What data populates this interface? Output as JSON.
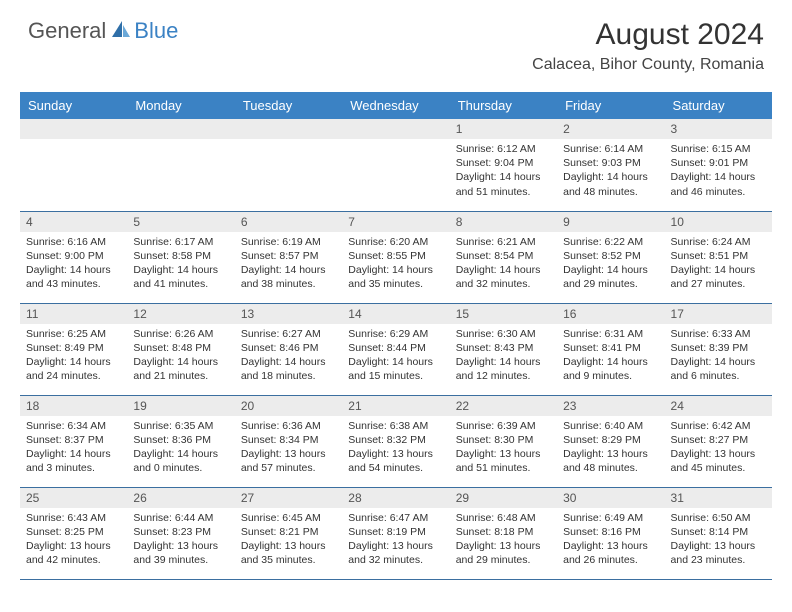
{
  "logo": {
    "text1": "General",
    "text2": "Blue"
  },
  "title": "August 2024",
  "location": "Calacea, Bihor County, Romania",
  "colors": {
    "header_bg": "#3b82c4",
    "header_text": "#ffffff",
    "daynum_bg": "#ececec",
    "row_border": "#3b6fa0",
    "body_text": "#333333"
  },
  "day_headers": [
    "Sunday",
    "Monday",
    "Tuesday",
    "Wednesday",
    "Thursday",
    "Friday",
    "Saturday"
  ],
  "weeks": [
    [
      null,
      null,
      null,
      null,
      {
        "n": "1",
        "sunrise": "Sunrise: 6:12 AM",
        "sunset": "Sunset: 9:04 PM",
        "day1": "Daylight: 14 hours",
        "day2": "and 51 minutes."
      },
      {
        "n": "2",
        "sunrise": "Sunrise: 6:14 AM",
        "sunset": "Sunset: 9:03 PM",
        "day1": "Daylight: 14 hours",
        "day2": "and 48 minutes."
      },
      {
        "n": "3",
        "sunrise": "Sunrise: 6:15 AM",
        "sunset": "Sunset: 9:01 PM",
        "day1": "Daylight: 14 hours",
        "day2": "and 46 minutes."
      }
    ],
    [
      {
        "n": "4",
        "sunrise": "Sunrise: 6:16 AM",
        "sunset": "Sunset: 9:00 PM",
        "day1": "Daylight: 14 hours",
        "day2": "and 43 minutes."
      },
      {
        "n": "5",
        "sunrise": "Sunrise: 6:17 AM",
        "sunset": "Sunset: 8:58 PM",
        "day1": "Daylight: 14 hours",
        "day2": "and 41 minutes."
      },
      {
        "n": "6",
        "sunrise": "Sunrise: 6:19 AM",
        "sunset": "Sunset: 8:57 PM",
        "day1": "Daylight: 14 hours",
        "day2": "and 38 minutes."
      },
      {
        "n": "7",
        "sunrise": "Sunrise: 6:20 AM",
        "sunset": "Sunset: 8:55 PM",
        "day1": "Daylight: 14 hours",
        "day2": "and 35 minutes."
      },
      {
        "n": "8",
        "sunrise": "Sunrise: 6:21 AM",
        "sunset": "Sunset: 8:54 PM",
        "day1": "Daylight: 14 hours",
        "day2": "and 32 minutes."
      },
      {
        "n": "9",
        "sunrise": "Sunrise: 6:22 AM",
        "sunset": "Sunset: 8:52 PM",
        "day1": "Daylight: 14 hours",
        "day2": "and 29 minutes."
      },
      {
        "n": "10",
        "sunrise": "Sunrise: 6:24 AM",
        "sunset": "Sunset: 8:51 PM",
        "day1": "Daylight: 14 hours",
        "day2": "and 27 minutes."
      }
    ],
    [
      {
        "n": "11",
        "sunrise": "Sunrise: 6:25 AM",
        "sunset": "Sunset: 8:49 PM",
        "day1": "Daylight: 14 hours",
        "day2": "and 24 minutes."
      },
      {
        "n": "12",
        "sunrise": "Sunrise: 6:26 AM",
        "sunset": "Sunset: 8:48 PM",
        "day1": "Daylight: 14 hours",
        "day2": "and 21 minutes."
      },
      {
        "n": "13",
        "sunrise": "Sunrise: 6:27 AM",
        "sunset": "Sunset: 8:46 PM",
        "day1": "Daylight: 14 hours",
        "day2": "and 18 minutes."
      },
      {
        "n": "14",
        "sunrise": "Sunrise: 6:29 AM",
        "sunset": "Sunset: 8:44 PM",
        "day1": "Daylight: 14 hours",
        "day2": "and 15 minutes."
      },
      {
        "n": "15",
        "sunrise": "Sunrise: 6:30 AM",
        "sunset": "Sunset: 8:43 PM",
        "day1": "Daylight: 14 hours",
        "day2": "and 12 minutes."
      },
      {
        "n": "16",
        "sunrise": "Sunrise: 6:31 AM",
        "sunset": "Sunset: 8:41 PM",
        "day1": "Daylight: 14 hours",
        "day2": "and 9 minutes."
      },
      {
        "n": "17",
        "sunrise": "Sunrise: 6:33 AM",
        "sunset": "Sunset: 8:39 PM",
        "day1": "Daylight: 14 hours",
        "day2": "and 6 minutes."
      }
    ],
    [
      {
        "n": "18",
        "sunrise": "Sunrise: 6:34 AM",
        "sunset": "Sunset: 8:37 PM",
        "day1": "Daylight: 14 hours",
        "day2": "and 3 minutes."
      },
      {
        "n": "19",
        "sunrise": "Sunrise: 6:35 AM",
        "sunset": "Sunset: 8:36 PM",
        "day1": "Daylight: 14 hours",
        "day2": "and 0 minutes."
      },
      {
        "n": "20",
        "sunrise": "Sunrise: 6:36 AM",
        "sunset": "Sunset: 8:34 PM",
        "day1": "Daylight: 13 hours",
        "day2": "and 57 minutes."
      },
      {
        "n": "21",
        "sunrise": "Sunrise: 6:38 AM",
        "sunset": "Sunset: 8:32 PM",
        "day1": "Daylight: 13 hours",
        "day2": "and 54 minutes."
      },
      {
        "n": "22",
        "sunrise": "Sunrise: 6:39 AM",
        "sunset": "Sunset: 8:30 PM",
        "day1": "Daylight: 13 hours",
        "day2": "and 51 minutes."
      },
      {
        "n": "23",
        "sunrise": "Sunrise: 6:40 AM",
        "sunset": "Sunset: 8:29 PM",
        "day1": "Daylight: 13 hours",
        "day2": "and 48 minutes."
      },
      {
        "n": "24",
        "sunrise": "Sunrise: 6:42 AM",
        "sunset": "Sunset: 8:27 PM",
        "day1": "Daylight: 13 hours",
        "day2": "and 45 minutes."
      }
    ],
    [
      {
        "n": "25",
        "sunrise": "Sunrise: 6:43 AM",
        "sunset": "Sunset: 8:25 PM",
        "day1": "Daylight: 13 hours",
        "day2": "and 42 minutes."
      },
      {
        "n": "26",
        "sunrise": "Sunrise: 6:44 AM",
        "sunset": "Sunset: 8:23 PM",
        "day1": "Daylight: 13 hours",
        "day2": "and 39 minutes."
      },
      {
        "n": "27",
        "sunrise": "Sunrise: 6:45 AM",
        "sunset": "Sunset: 8:21 PM",
        "day1": "Daylight: 13 hours",
        "day2": "and 35 minutes."
      },
      {
        "n": "28",
        "sunrise": "Sunrise: 6:47 AM",
        "sunset": "Sunset: 8:19 PM",
        "day1": "Daylight: 13 hours",
        "day2": "and 32 minutes."
      },
      {
        "n": "29",
        "sunrise": "Sunrise: 6:48 AM",
        "sunset": "Sunset: 8:18 PM",
        "day1": "Daylight: 13 hours",
        "day2": "and 29 minutes."
      },
      {
        "n": "30",
        "sunrise": "Sunrise: 6:49 AM",
        "sunset": "Sunset: 8:16 PM",
        "day1": "Daylight: 13 hours",
        "day2": "and 26 minutes."
      },
      {
        "n": "31",
        "sunrise": "Sunrise: 6:50 AM",
        "sunset": "Sunset: 8:14 PM",
        "day1": "Daylight: 13 hours",
        "day2": "and 23 minutes."
      }
    ]
  ]
}
